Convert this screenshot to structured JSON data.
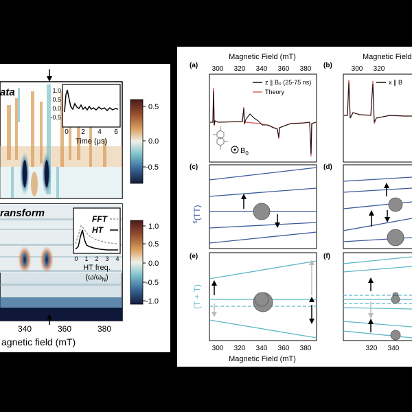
{
  "left_figure": {
    "top_panel_label": "ata",
    "bottom_panel_label": "ransform",
    "top_inset": {
      "yticks": [
        "1.0",
        "0.5",
        "0.0",
        "-0.5"
      ],
      "xticks": [
        "0",
        "2",
        "4",
        "6"
      ],
      "xlabel": "Time (μs)"
    },
    "top_colorbar_ticks": [
      "0.5",
      "0.0",
      "-0.5"
    ],
    "bottom_inset": {
      "legend_fft": "FFT",
      "legend_ht": "HT",
      "xticks": [
        "0",
        "1",
        "2",
        "3",
        "4"
      ],
      "xlabel_line1": "HT freq.",
      "xlabel_line2": "(ω/ω",
      "xlabel_sub": "N",
      "xlabel_close": ")"
    },
    "bottom_colorbar_ticks": [
      "1.0",
      "0.5",
      "0.0",
      "-0.5",
      "-1.0"
    ],
    "xticks": [
      "340",
      "360",
      "380"
    ],
    "xlabel": "agnetic field (mT)"
  },
  "right_figure": {
    "top_axis_label": "Magnetic Field (mT)",
    "top_axis_label_b": "Magnetic Field",
    "top_xticks": [
      "300",
      "320",
      "340",
      "360",
      "380"
    ],
    "top_xticks_b": [
      "300",
      "320"
    ],
    "bottom_xticks": [
      "300",
      "320",
      "340",
      "360",
      "380"
    ],
    "bottom_xticks_f": [
      "320",
      "340"
    ],
    "bottom_axis_label": "Magnetic Field (mT)",
    "panel_labels": [
      "(a)",
      "(b)",
      "(c)",
      "(d)",
      "(e)",
      "(f)"
    ],
    "legend_a": {
      "data": "z ∥ B₀ (25-75 ns)",
      "theory": "Theory"
    },
    "legend_b": {
      "data": "x ∥ B"
    },
    "b0_label": "B",
    "b0_sub": "0",
    "level_label_quintet_pre": "5",
    "level_label_quintet": "(TT)",
    "level_label_pair": "(T + T)"
  },
  "colors": {
    "data_line": "#111111",
    "theory_line": "#e06666",
    "quintet_levels": "#3a5a9a",
    "pair_levels": "#5bb7c5",
    "circle_fill": "#8c8c8c",
    "arrow_gray": "#bbbbbb"
  }
}
